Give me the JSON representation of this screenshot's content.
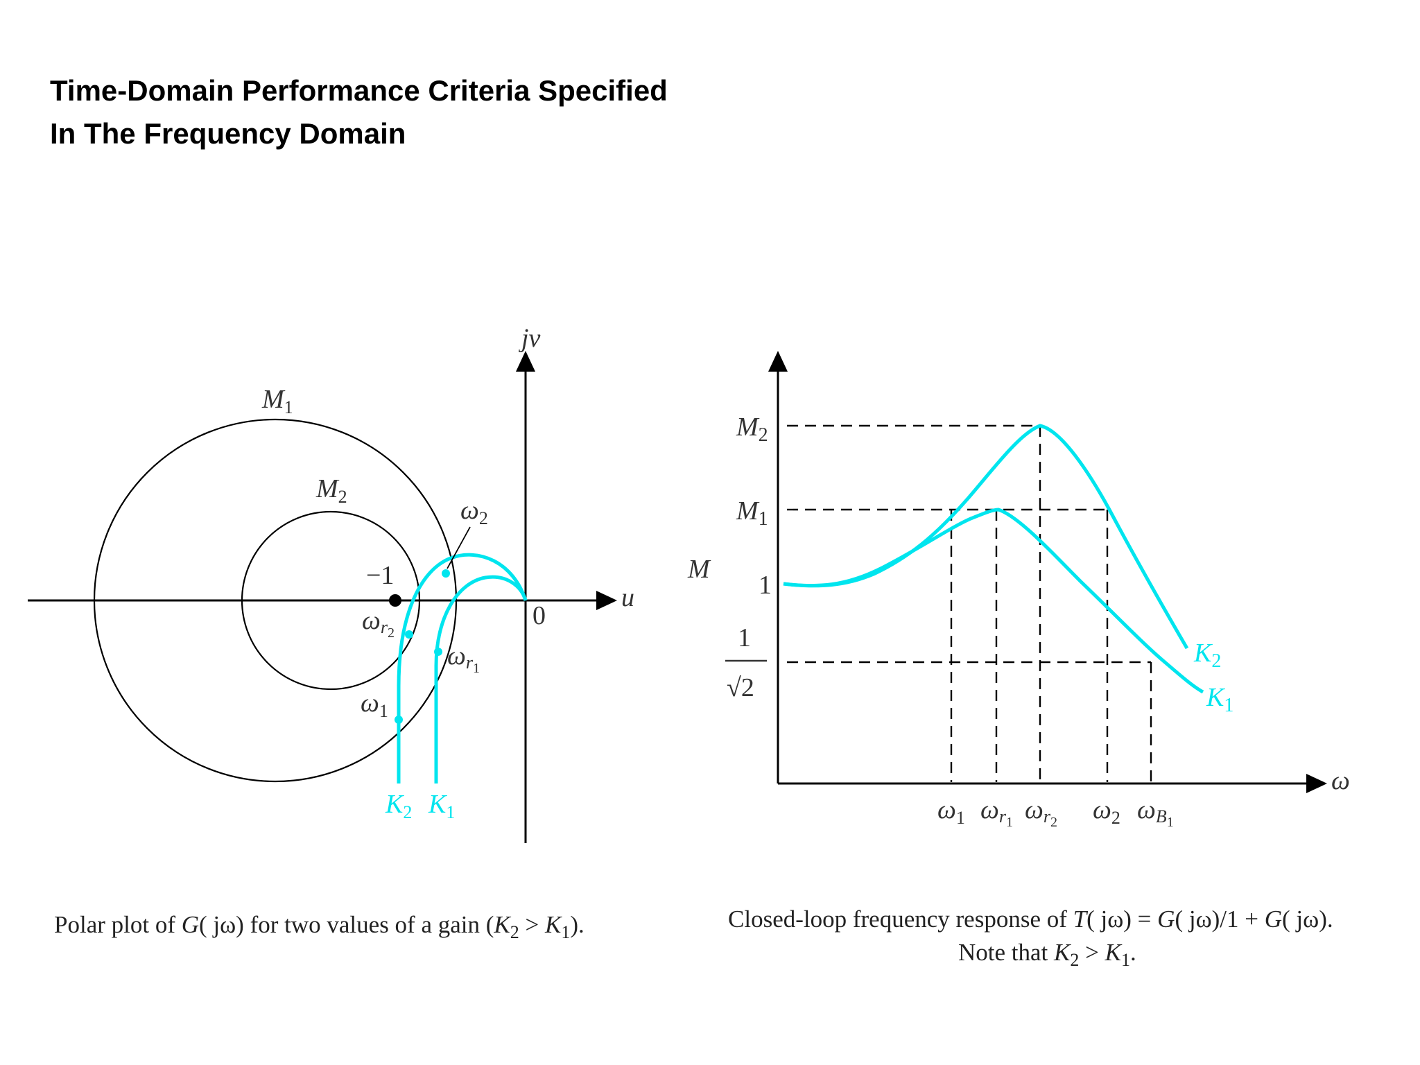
{
  "title": {
    "line1": "Time-Domain Performance Criteria Specified",
    "line2": "In The Frequency Domain"
  },
  "colors": {
    "curve": "#00e5ee",
    "axis": "#000000",
    "text": "#222222"
  },
  "polar": {
    "axis_v": "jv",
    "axis_h": "u",
    "origin": "0",
    "minus_one": "−1",
    "circle_outer": {
      "sym": "M",
      "sub": "1"
    },
    "circle_inner": {
      "sym": "M",
      "sub": "2"
    },
    "w2": {
      "sym": "ω",
      "sub": "2"
    },
    "wr2": {
      "sym": "ω",
      "sub": "r",
      "subsub": "2"
    },
    "wr1": {
      "sym": "ω",
      "sub": "r",
      "subsub": "1"
    },
    "w1": {
      "sym": "ω",
      "sub": "1"
    },
    "k2": {
      "sym": "K",
      "sub": "2"
    },
    "k1": {
      "sym": "K",
      "sub": "1"
    },
    "caption": {
      "pre": "Polar plot of ",
      "G": "G",
      "mid": "( jω) for two values of a gain (",
      "k2": "K",
      "k2sub": "2",
      "gt": " > ",
      "k1": "K",
      "k1sub": "1",
      "post": ")."
    }
  },
  "freq": {
    "axis_y": "M",
    "axis_x": "ω",
    "m2": {
      "sym": "M",
      "sub": "2"
    },
    "m1": {
      "sym": "M",
      "sub": "1"
    },
    "one": "1",
    "frac_num": "1",
    "frac_den": "√2",
    "ticks": [
      {
        "sym": "ω",
        "sub": "1",
        "subsub": ""
      },
      {
        "sym": "ω",
        "sub": "r",
        "subsub": "1"
      },
      {
        "sym": "ω",
        "sub": "r",
        "subsub": "2"
      },
      {
        "sym": "ω",
        "sub": "2",
        "subsub": ""
      },
      {
        "sym": "ω",
        "sub": "B",
        "subsub": "1"
      }
    ],
    "k2": {
      "sym": "K",
      "sub": "2"
    },
    "k1": {
      "sym": "K",
      "sub": "1"
    },
    "caption": {
      "line1_pre": "Closed-loop frequency response of ",
      "T": "T",
      "line1_mid": "( jω) = ",
      "G1": "G",
      "line1_mid2": "( jω)/1 + ",
      "G2": "G",
      "line1_post": "( jω).",
      "line2_pre": "Note that ",
      "k2": "K",
      "k2sub": "2",
      "gt": " > ",
      "k1": "K",
      "k1sub": "1",
      "post": "."
    }
  }
}
